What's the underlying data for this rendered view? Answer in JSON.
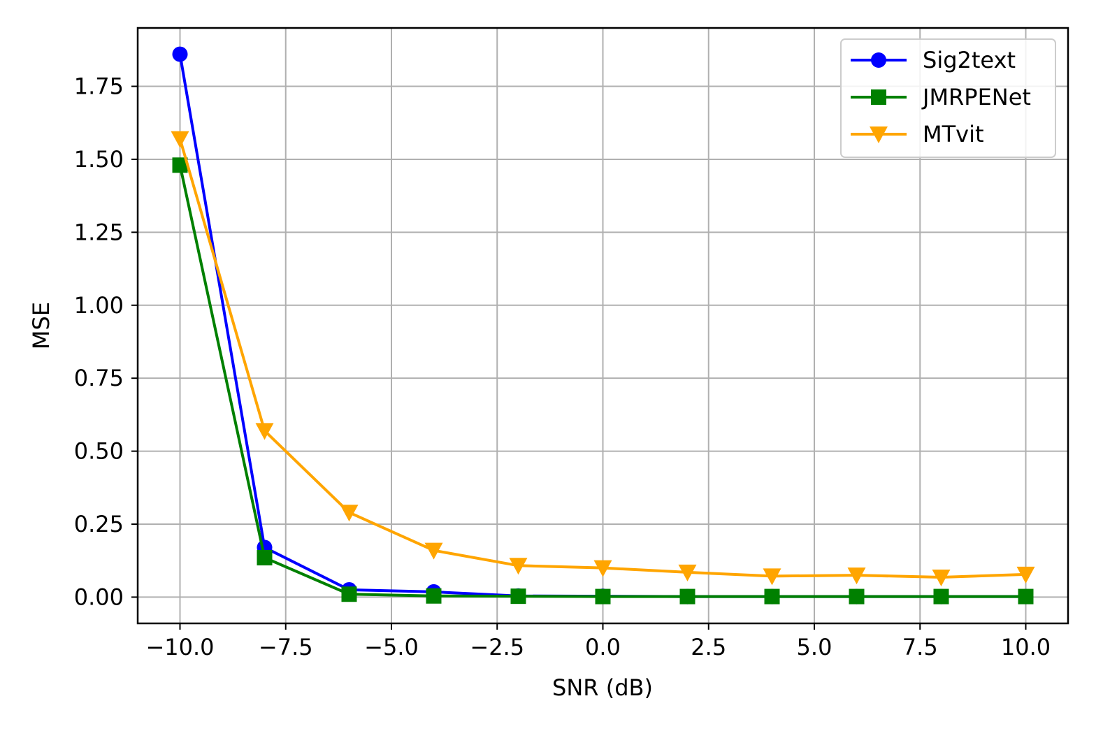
{
  "chart_data": {
    "type": "line",
    "title": "",
    "xlabel": "SNR (dB)",
    "ylabel": "MSE",
    "xlim": [
      -11.0,
      11.0
    ],
    "ylim": [
      -0.09,
      1.95
    ],
    "x_ticks": [
      -10.0,
      -7.5,
      -5.0,
      -2.5,
      0.0,
      2.5,
      5.0,
      7.5,
      10.0
    ],
    "x_tick_labels": [
      "−10.0",
      "−7.5",
      "−5.0",
      "−2.5",
      "0.0",
      "2.5",
      "5.0",
      "7.5",
      "10.0"
    ],
    "y_ticks": [
      0.0,
      0.25,
      0.5,
      0.75,
      1.0,
      1.25,
      1.5,
      1.75
    ],
    "y_tick_labels": [
      "0.00",
      "0.25",
      "0.50",
      "0.75",
      "1.00",
      "1.25",
      "1.50",
      "1.75"
    ],
    "grid": true,
    "legend_position": "top-right",
    "x": [
      -10,
      -8,
      -6,
      -4,
      -2,
      0,
      2,
      4,
      6,
      8,
      10
    ],
    "series": [
      {
        "name": "Sig2text",
        "color": "#0000ff",
        "marker": "circle",
        "values": [
          1.86,
          0.17,
          0.025,
          0.018,
          0.004,
          0.003,
          0.002,
          0.002,
          0.002,
          0.002,
          0.002
        ]
      },
      {
        "name": "JMRPENet",
        "color": "#008000",
        "marker": "square",
        "values": [
          1.48,
          0.135,
          0.01,
          0.004,
          0.003,
          0.002,
          0.002,
          0.002,
          0.002,
          0.002,
          0.002
        ]
      },
      {
        "name": "MTvit",
        "color": "#ffa500",
        "marker": "triangle-down",
        "values": [
          1.57,
          0.57,
          0.29,
          0.16,
          0.108,
          0.1,
          0.085,
          0.072,
          0.075,
          0.068,
          0.078
        ]
      }
    ]
  }
}
